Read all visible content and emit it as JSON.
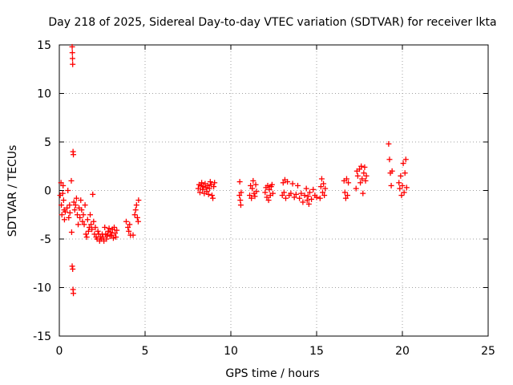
{
  "chart_data": {
    "type": "scatter",
    "title": "Day 218 of 2025, Sidereal Day-to-day VTEC variation (SDTVAR) for receiver lkta",
    "xlabel": "GPS time / hours",
    "ylabel": "SDTVAR / TECUs",
    "xlim": [
      0,
      25
    ],
    "ylim": [
      -15,
      15
    ],
    "xticks": [
      0,
      5,
      10,
      15,
      20,
      25
    ],
    "yticks": [
      -15,
      -10,
      -5,
      0,
      5,
      10,
      15
    ],
    "grid": true,
    "marker": "+",
    "color": "#ff0000",
    "series": [
      {
        "name": "SDTVAR",
        "points": [
          [
            0.05,
            -0.5
          ],
          [
            0.1,
            0.8
          ],
          [
            0.12,
            -1.5
          ],
          [
            0.15,
            -2.5
          ],
          [
            0.2,
            -0.3
          ],
          [
            0.22,
            0.5
          ],
          [
            0.25,
            -1.0
          ],
          [
            0.28,
            -2.0
          ],
          [
            0.3,
            -3.0
          ],
          [
            0.35,
            -2.2
          ],
          [
            0.45,
            -1.8
          ],
          [
            0.5,
            0.0
          ],
          [
            0.55,
            -2.8
          ],
          [
            0.6,
            -1.5
          ],
          [
            0.62,
            -2.3
          ],
          [
            0.7,
            1.0
          ],
          [
            0.72,
            -4.3
          ],
          [
            0.75,
            -7.8
          ],
          [
            0.78,
            -8.1
          ],
          [
            0.8,
            -10.2
          ],
          [
            0.82,
            -10.6
          ],
          [
            0.75,
            14.8
          ],
          [
            0.76,
            14.2
          ],
          [
            0.77,
            13.6
          ],
          [
            0.78,
            13.0
          ],
          [
            0.8,
            4.0
          ],
          [
            0.82,
            3.7
          ],
          [
            0.85,
            -1.2
          ],
          [
            0.9,
            -2.0
          ],
          [
            0.95,
            -1.5
          ],
          [
            1.0,
            -0.8
          ],
          [
            1.05,
            -2.5
          ],
          [
            1.1,
            -3.5
          ],
          [
            1.15,
            -1.8
          ],
          [
            1.2,
            -2.8
          ],
          [
            1.25,
            -1.0
          ],
          [
            1.3,
            -2.0
          ],
          [
            1.35,
            -3.2
          ],
          [
            1.4,
            -2.5
          ],
          [
            1.45,
            -3.5
          ],
          [
            1.5,
            -1.5
          ],
          [
            1.55,
            -4.5
          ],
          [
            1.6,
            -4.8
          ],
          [
            1.65,
            -3.0
          ],
          [
            1.7,
            -4.2
          ],
          [
            1.75,
            -3.8
          ],
          [
            1.8,
            -2.5
          ],
          [
            1.85,
            -3.5
          ],
          [
            1.9,
            -4.0
          ],
          [
            1.95,
            -0.4
          ],
          [
            2.0,
            -3.2
          ],
          [
            2.05,
            -4.5
          ],
          [
            2.1,
            -3.8
          ],
          [
            2.15,
            -4.8
          ],
          [
            2.2,
            -5.0
          ],
          [
            2.25,
            -4.2
          ],
          [
            2.3,
            -4.5
          ],
          [
            2.35,
            -5.2
          ],
          [
            2.4,
            -4.8
          ],
          [
            2.45,
            -5.0
          ],
          [
            2.5,
            -4.5
          ],
          [
            2.55,
            -4.8
          ],
          [
            2.6,
            -5.2
          ],
          [
            2.65,
            -3.8
          ],
          [
            2.7,
            -4.5
          ],
          [
            2.75,
            -5.0
          ],
          [
            2.8,
            -4.6
          ],
          [
            2.85,
            -4.2
          ],
          [
            2.9,
            -3.9
          ],
          [
            2.95,
            -4.7
          ],
          [
            3.0,
            -4.3
          ],
          [
            3.05,
            -4.6
          ],
          [
            3.1,
            -4.0
          ],
          [
            3.15,
            -4.9
          ],
          [
            3.2,
            -3.8
          ],
          [
            3.25,
            -4.4
          ],
          [
            3.3,
            -4.8
          ],
          [
            3.35,
            -4.1
          ],
          [
            3.9,
            -3.2
          ],
          [
            4.0,
            -3.8
          ],
          [
            4.05,
            -4.2
          ],
          [
            4.1,
            -3.5
          ],
          [
            4.15,
            -4.6
          ],
          [
            4.3,
            -4.6
          ],
          [
            4.4,
            -2.5
          ],
          [
            4.45,
            -2.0
          ],
          [
            4.5,
            -1.5
          ],
          [
            4.55,
            -2.8
          ],
          [
            4.6,
            -3.2
          ],
          [
            4.62,
            -1.0
          ],
          [
            8.1,
            0.2
          ],
          [
            8.15,
            0.6
          ],
          [
            8.2,
            -0.2
          ],
          [
            8.25,
            0.5
          ],
          [
            8.3,
            0.8
          ],
          [
            8.35,
            0.1
          ],
          [
            8.4,
            0.4
          ],
          [
            8.45,
            -0.3
          ],
          [
            8.5,
            0.7
          ],
          [
            8.55,
            0.3
          ],
          [
            8.6,
            -0.1
          ],
          [
            8.65,
            0.5
          ],
          [
            8.7,
            -0.4
          ],
          [
            8.75,
            0.2
          ],
          [
            8.8,
            0.9
          ],
          [
            8.85,
            0.6
          ],
          [
            8.9,
            -0.5
          ],
          [
            8.95,
            -0.8
          ],
          [
            9.0,
            0.4
          ],
          [
            9.05,
            0.8
          ],
          [
            10.5,
            -0.5
          ],
          [
            10.52,
            0.9
          ],
          [
            10.55,
            -1.0
          ],
          [
            10.58,
            -1.5
          ],
          [
            10.6,
            -0.2
          ],
          [
            11.1,
            -0.5
          ],
          [
            11.15,
            0.5
          ],
          [
            11.2,
            -0.8
          ],
          [
            11.25,
            0.2
          ],
          [
            11.3,
            1.0
          ],
          [
            11.35,
            -0.3
          ],
          [
            11.4,
            -0.6
          ],
          [
            11.45,
            0.6
          ],
          [
            11.5,
            -0.1
          ],
          [
            12.0,
            -0.2
          ],
          [
            12.05,
            0.3
          ],
          [
            12.1,
            -0.7
          ],
          [
            12.15,
            0.5
          ],
          [
            12.2,
            -1.0
          ],
          [
            12.25,
            0.1
          ],
          [
            12.3,
            -0.5
          ],
          [
            12.35,
            0.4
          ],
          [
            12.4,
            0.6
          ],
          [
            12.45,
            -0.3
          ],
          [
            13.0,
            -0.5
          ],
          [
            13.05,
            0.8
          ],
          [
            13.1,
            -0.2
          ],
          [
            13.15,
            1.1
          ],
          [
            13.2,
            -0.8
          ],
          [
            13.3,
            0.9
          ],
          [
            13.4,
            -0.5
          ],
          [
            13.5,
            -0.3
          ],
          [
            13.6,
            0.7
          ],
          [
            13.7,
            -0.7
          ],
          [
            13.8,
            -0.4
          ],
          [
            13.9,
            0.5
          ],
          [
            14.0,
            -0.8
          ],
          [
            14.1,
            -0.3
          ],
          [
            14.2,
            -1.2
          ],
          [
            14.3,
            -0.5
          ],
          [
            14.4,
            0.2
          ],
          [
            14.45,
            -1.0
          ],
          [
            14.5,
            -0.6
          ],
          [
            14.55,
            -1.4
          ],
          [
            14.6,
            -0.2
          ],
          [
            14.7,
            -0.9
          ],
          [
            14.8,
            0.1
          ],
          [
            14.9,
            -0.5
          ],
          [
            15.0,
            -0.7
          ],
          [
            15.2,
            -0.8
          ],
          [
            15.25,
            0.4
          ],
          [
            15.3,
            1.2
          ],
          [
            15.35,
            -0.2
          ],
          [
            15.4,
            0.7
          ],
          [
            15.45,
            -0.5
          ],
          [
            15.5,
            0.2
          ],
          [
            16.6,
            1.0
          ],
          [
            16.65,
            -0.2
          ],
          [
            16.7,
            -0.8
          ],
          [
            16.75,
            1.2
          ],
          [
            16.8,
            -0.5
          ],
          [
            16.85,
            0.8
          ],
          [
            17.3,
            0.2
          ],
          [
            17.35,
            2.0
          ],
          [
            17.4,
            1.5
          ],
          [
            17.5,
            2.2
          ],
          [
            17.55,
            0.8
          ],
          [
            17.6,
            2.5
          ],
          [
            17.65,
            1.2
          ],
          [
            17.7,
            -0.3
          ],
          [
            17.75,
            1.8
          ],
          [
            17.8,
            2.4
          ],
          [
            17.85,
            1.0
          ],
          [
            17.9,
            1.5
          ],
          [
            19.2,
            4.8
          ],
          [
            19.25,
            3.2
          ],
          [
            19.3,
            1.8
          ],
          [
            19.35,
            0.5
          ],
          [
            19.4,
            2.0
          ],
          [
            19.8,
            0.8
          ],
          [
            19.85,
            0.2
          ],
          [
            19.9,
            1.5
          ],
          [
            19.95,
            -0.5
          ],
          [
            20.0,
            0.5
          ],
          [
            20.05,
            2.8
          ],
          [
            20.1,
            -0.2
          ],
          [
            20.15,
            1.8
          ],
          [
            20.2,
            3.2
          ],
          [
            20.25,
            0.3
          ]
        ]
      }
    ]
  }
}
